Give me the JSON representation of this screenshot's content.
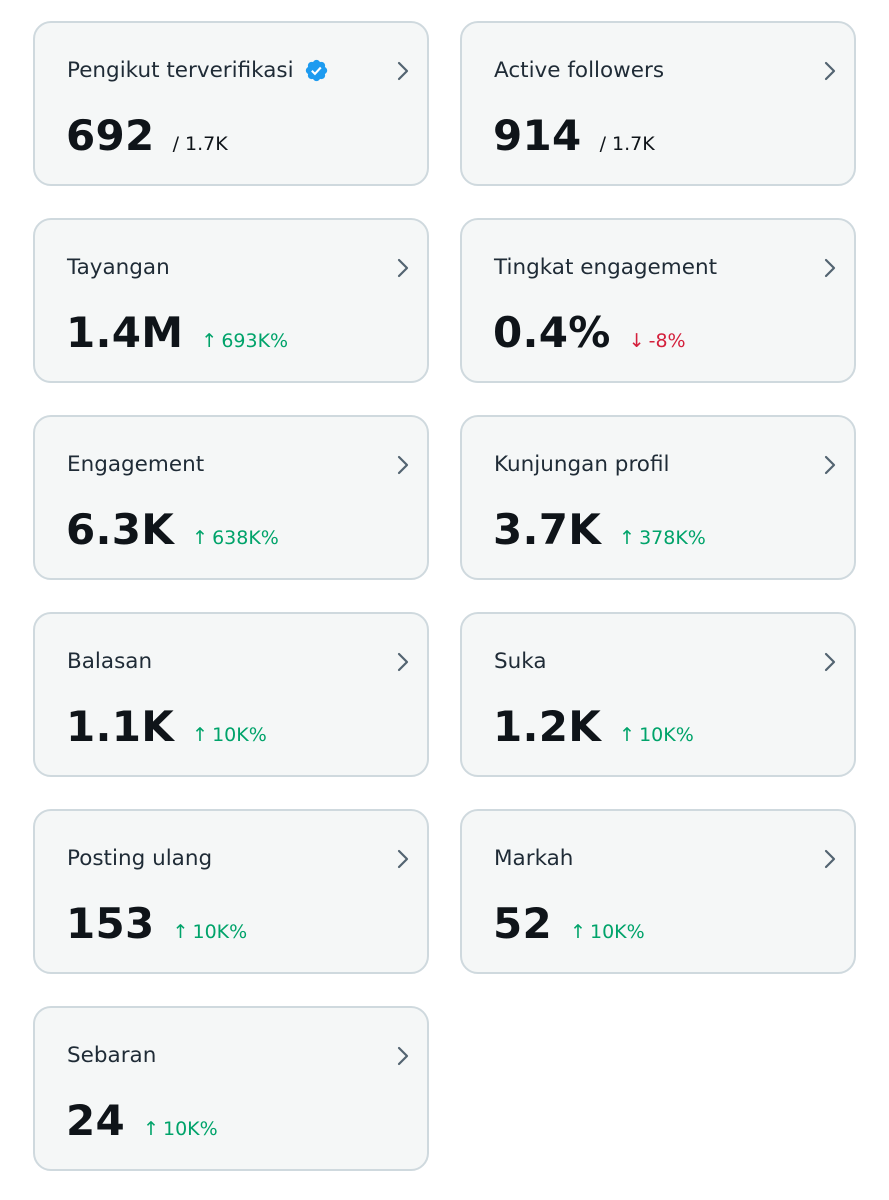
{
  "cards": [
    {
      "title": "Pengikut terverifikasi",
      "value": "692",
      "total": "/ 1.7K",
      "verified": true
    },
    {
      "title": "Active followers",
      "value": "914",
      "total": "/ 1.7K"
    },
    {
      "title": "Tayangan",
      "value": "1.4M",
      "change": "693K%",
      "direction": "up"
    },
    {
      "title": "Tingkat engagement",
      "value": "0.4%",
      "change": "-8%",
      "direction": "down"
    },
    {
      "title": "Engagement",
      "value": "6.3K",
      "change": "638K%",
      "direction": "up"
    },
    {
      "title": "Kunjungan profil",
      "value": "3.7K",
      "change": "378K%",
      "direction": "up"
    },
    {
      "title": "Balasan",
      "value": "1.1K",
      "change": "10K%",
      "direction": "up"
    },
    {
      "title": "Suka",
      "value": "1.2K",
      "change": "10K%",
      "direction": "up"
    },
    {
      "title": "Posting ulang",
      "value": "153",
      "change": "10K%",
      "direction": "up"
    },
    {
      "title": "Markah",
      "value": "52",
      "change": "10K%",
      "direction": "up"
    },
    {
      "title": "Sebaran",
      "value": "24",
      "change": "10K%",
      "direction": "up"
    }
  ],
  "icons": {
    "up_arrow": "↑",
    "down_arrow": "↓"
  },
  "colors": {
    "positive": "#00a36a",
    "negative": "#d4203c",
    "verified": "#1d9bf0"
  }
}
